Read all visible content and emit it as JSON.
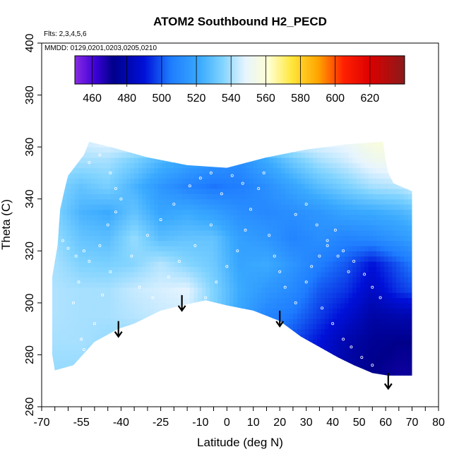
{
  "chart_data": {
    "type": "heatmap",
    "title": "ATOM2 Southbound H2_PECD",
    "flights_note": "Flts: 2,3,4,5,6",
    "dates_note": "MMDD: 0129,0201,0203,0205,0210",
    "xlabel": "Latitude (deg N)",
    "ylabel": "Theta (C)",
    "xlim": [
      -70,
      80
    ],
    "ylim": [
      260,
      400
    ],
    "xtick_labels": [
      "-70",
      "-55",
      "-40",
      "-25",
      "-10",
      "0",
      "10",
      "20",
      "30",
      "40",
      "50",
      "60",
      "70",
      "80"
    ],
    "ytick_labels": [
      "260",
      "280",
      "300",
      "320",
      "340",
      "360",
      "380",
      "400"
    ],
    "colorbar": {
      "range": [
        450,
        640
      ],
      "tick_values": [
        460,
        480,
        500,
        520,
        540,
        560,
        580,
        600,
        620
      ],
      "tick_labels": [
        "460",
        "480",
        "500",
        "520",
        "540",
        "560",
        "580",
        "600",
        "620"
      ],
      "stops": [
        {
          "v": 450,
          "c": "#8a2be2"
        },
        {
          "v": 462,
          "c": "#3b00d6"
        },
        {
          "v": 472,
          "c": "#00008b"
        },
        {
          "v": 490,
          "c": "#0010d8"
        },
        {
          "v": 505,
          "c": "#1e7cff"
        },
        {
          "v": 522,
          "c": "#3aaaff"
        },
        {
          "v": 535,
          "c": "#7fd3ff"
        },
        {
          "v": 548,
          "c": "#e6f4ff"
        },
        {
          "v": 562,
          "c": "#ffffd0"
        },
        {
          "v": 575,
          "c": "#ffe63c"
        },
        {
          "v": 590,
          "c": "#ffa500"
        },
        {
          "v": 605,
          "c": "#ff2000"
        },
        {
          "v": 620,
          "c": "#dc0000"
        },
        {
          "v": 640,
          "c": "#8b1a1a"
        }
      ]
    },
    "field": {
      "lats": [
        -65,
        -55,
        -45,
        -35,
        -25,
        -15,
        -5,
        5,
        15,
        25,
        35,
        45,
        55,
        65,
        70
      ],
      "thetas": [
        275,
        285,
        295,
        305,
        315,
        325,
        335,
        345,
        355,
        365
      ],
      "values": [
        [
          538,
          538,
          536,
          534,
          532,
          530,
          528,
          518,
          505,
          498,
          488,
          478,
          472,
          470,
          470
        ],
        [
          540,
          540,
          538,
          537,
          535,
          532,
          528,
          520,
          506,
          498,
          490,
          480,
          474,
          472,
          472
        ],
        [
          541,
          540,
          540,
          542,
          544,
          545,
          535,
          520,
          508,
          504,
          496,
          488,
          478,
          480,
          480
        ],
        [
          541,
          540,
          540,
          544,
          546,
          548,
          535,
          522,
          515,
          510,
          500,
          495,
          485,
          495,
          498
        ],
        [
          540,
          535,
          534,
          536,
          542,
          536,
          532,
          520,
          522,
          514,
          506,
          500,
          490,
          500,
          505
        ],
        [
          538,
          530,
          528,
          538,
          528,
          530,
          530,
          518,
          515,
          508,
          512,
          508,
          510,
          515,
          518
        ],
        [
          535,
          525,
          522,
          530,
          520,
          522,
          518,
          512,
          510,
          512,
          515,
          520,
          522,
          525,
          528
        ],
        [
          536,
          530,
          534,
          525,
          515,
          508,
          504,
          506,
          512,
          520,
          528,
          534,
          540,
          542,
          545
        ],
        [
          540,
          540,
          540,
          534,
          526,
          520,
          515,
          512,
          522,
          532,
          540,
          545,
          552,
          555,
          555
        ],
        [
          545,
          548,
          552,
          552,
          552,
          552,
          552,
          552,
          552,
          552,
          552,
          552,
          560,
          562,
          562
        ]
      ],
      "ceiling": [
        [
          -60,
          349
        ],
        [
          -54,
          357
        ],
        [
          -52,
          362
        ],
        [
          -44,
          360
        ],
        [
          -30,
          356
        ],
        [
          -15,
          353
        ],
        [
          0,
          352
        ],
        [
          15,
          356
        ],
        [
          30,
          359
        ],
        [
          45,
          361
        ],
        [
          59,
          362
        ],
        [
          60,
          355
        ],
        [
          61,
          350
        ],
        [
          63,
          346
        ],
        [
          70,
          343
        ]
      ],
      "floor": [
        [
          -65,
          274
        ],
        [
          -58,
          276
        ],
        [
          -50,
          285
        ],
        [
          -41,
          290
        ],
        [
          -35,
          292
        ],
        [
          -25,
          297
        ],
        [
          -17,
          299
        ],
        [
          -8,
          301
        ],
        [
          0,
          299
        ],
        [
          10,
          297
        ],
        [
          20,
          293
        ],
        [
          28,
          287
        ],
        [
          35,
          283
        ],
        [
          42,
          279
        ],
        [
          48,
          276
        ],
        [
          55,
          273
        ],
        [
          61,
          272
        ],
        [
          70,
          272
        ]
      ],
      "left_edge": [
        [
          -65,
          274
        ],
        [
          -66,
          280
        ],
        [
          -66,
          295
        ],
        [
          -66,
          310
        ],
        [
          -64,
          322
        ],
        [
          -63,
          336
        ],
        [
          -61,
          345
        ],
        [
          -60,
          349
        ]
      ],
      "right_edge": [
        [
          70,
          343
        ],
        [
          70,
          320
        ],
        [
          70,
          300
        ],
        [
          70,
          285
        ],
        [
          70,
          272
        ]
      ]
    },
    "markers": [
      {
        "lat": -41,
        "theta": 287
      },
      {
        "lat": -17,
        "theta": 297
      },
      {
        "lat": 20,
        "theta": 291
      },
      {
        "lat": 61,
        "theta": 267
      }
    ],
    "flight_track_points": [
      [
        -62,
        324
      ],
      [
        -60,
        321
      ],
      [
        -57,
        318
      ],
      [
        -54,
        320
      ],
      [
        -52,
        316
      ],
      [
        -48,
        322
      ],
      [
        -45,
        330
      ],
      [
        -42,
        335
      ],
      [
        -40,
        340
      ],
      [
        -42,
        344
      ],
      [
        -44,
        350
      ],
      [
        -48,
        357
      ],
      [
        -52,
        354
      ],
      [
        -55,
        360
      ],
      [
        -58,
        300
      ],
      [
        -56,
        308
      ],
      [
        -55,
        286
      ],
      [
        -54,
        282
      ],
      [
        -50,
        292
      ],
      [
        -47,
        303
      ],
      [
        -44,
        312
      ],
      [
        -36,
        318
      ],
      [
        -30,
        326
      ],
      [
        -25,
        332
      ],
      [
        -20,
        338
      ],
      [
        -14,
        345
      ],
      [
        -10,
        348
      ],
      [
        -6,
        350
      ],
      [
        -2,
        342
      ],
      [
        2,
        349
      ],
      [
        6,
        346
      ],
      [
        9,
        336
      ],
      [
        12,
        344
      ],
      [
        14,
        350
      ],
      [
        16,
        326
      ],
      [
        18,
        318
      ],
      [
        20,
        312
      ],
      [
        22,
        306
      ],
      [
        26,
        300
      ],
      [
        30,
        308
      ],
      [
        32,
        314
      ],
      [
        35,
        318
      ],
      [
        38,
        324
      ],
      [
        41,
        328
      ],
      [
        44,
        320
      ],
      [
        48,
        316
      ],
      [
        52,
        311
      ],
      [
        55,
        306
      ],
      [
        58,
        302
      ],
      [
        36,
        298
      ],
      [
        40,
        292
      ],
      [
        44,
        286
      ],
      [
        47,
        283
      ],
      [
        51,
        279
      ],
      [
        55,
        276
      ],
      [
        -8,
        302
      ],
      [
        -4,
        308
      ],
      [
        0,
        314
      ],
      [
        4,
        320
      ],
      [
        7,
        328
      ],
      [
        -28,
        302
      ],
      [
        -33,
        306
      ],
      [
        -22,
        310
      ],
      [
        -18,
        316
      ],
      [
        -12,
        322
      ],
      [
        -6,
        330
      ],
      [
        26,
        334
      ],
      [
        30,
        338
      ],
      [
        34,
        330
      ],
      [
        38,
        322
      ],
      [
        42,
        318
      ],
      [
        46,
        312
      ]
    ]
  }
}
